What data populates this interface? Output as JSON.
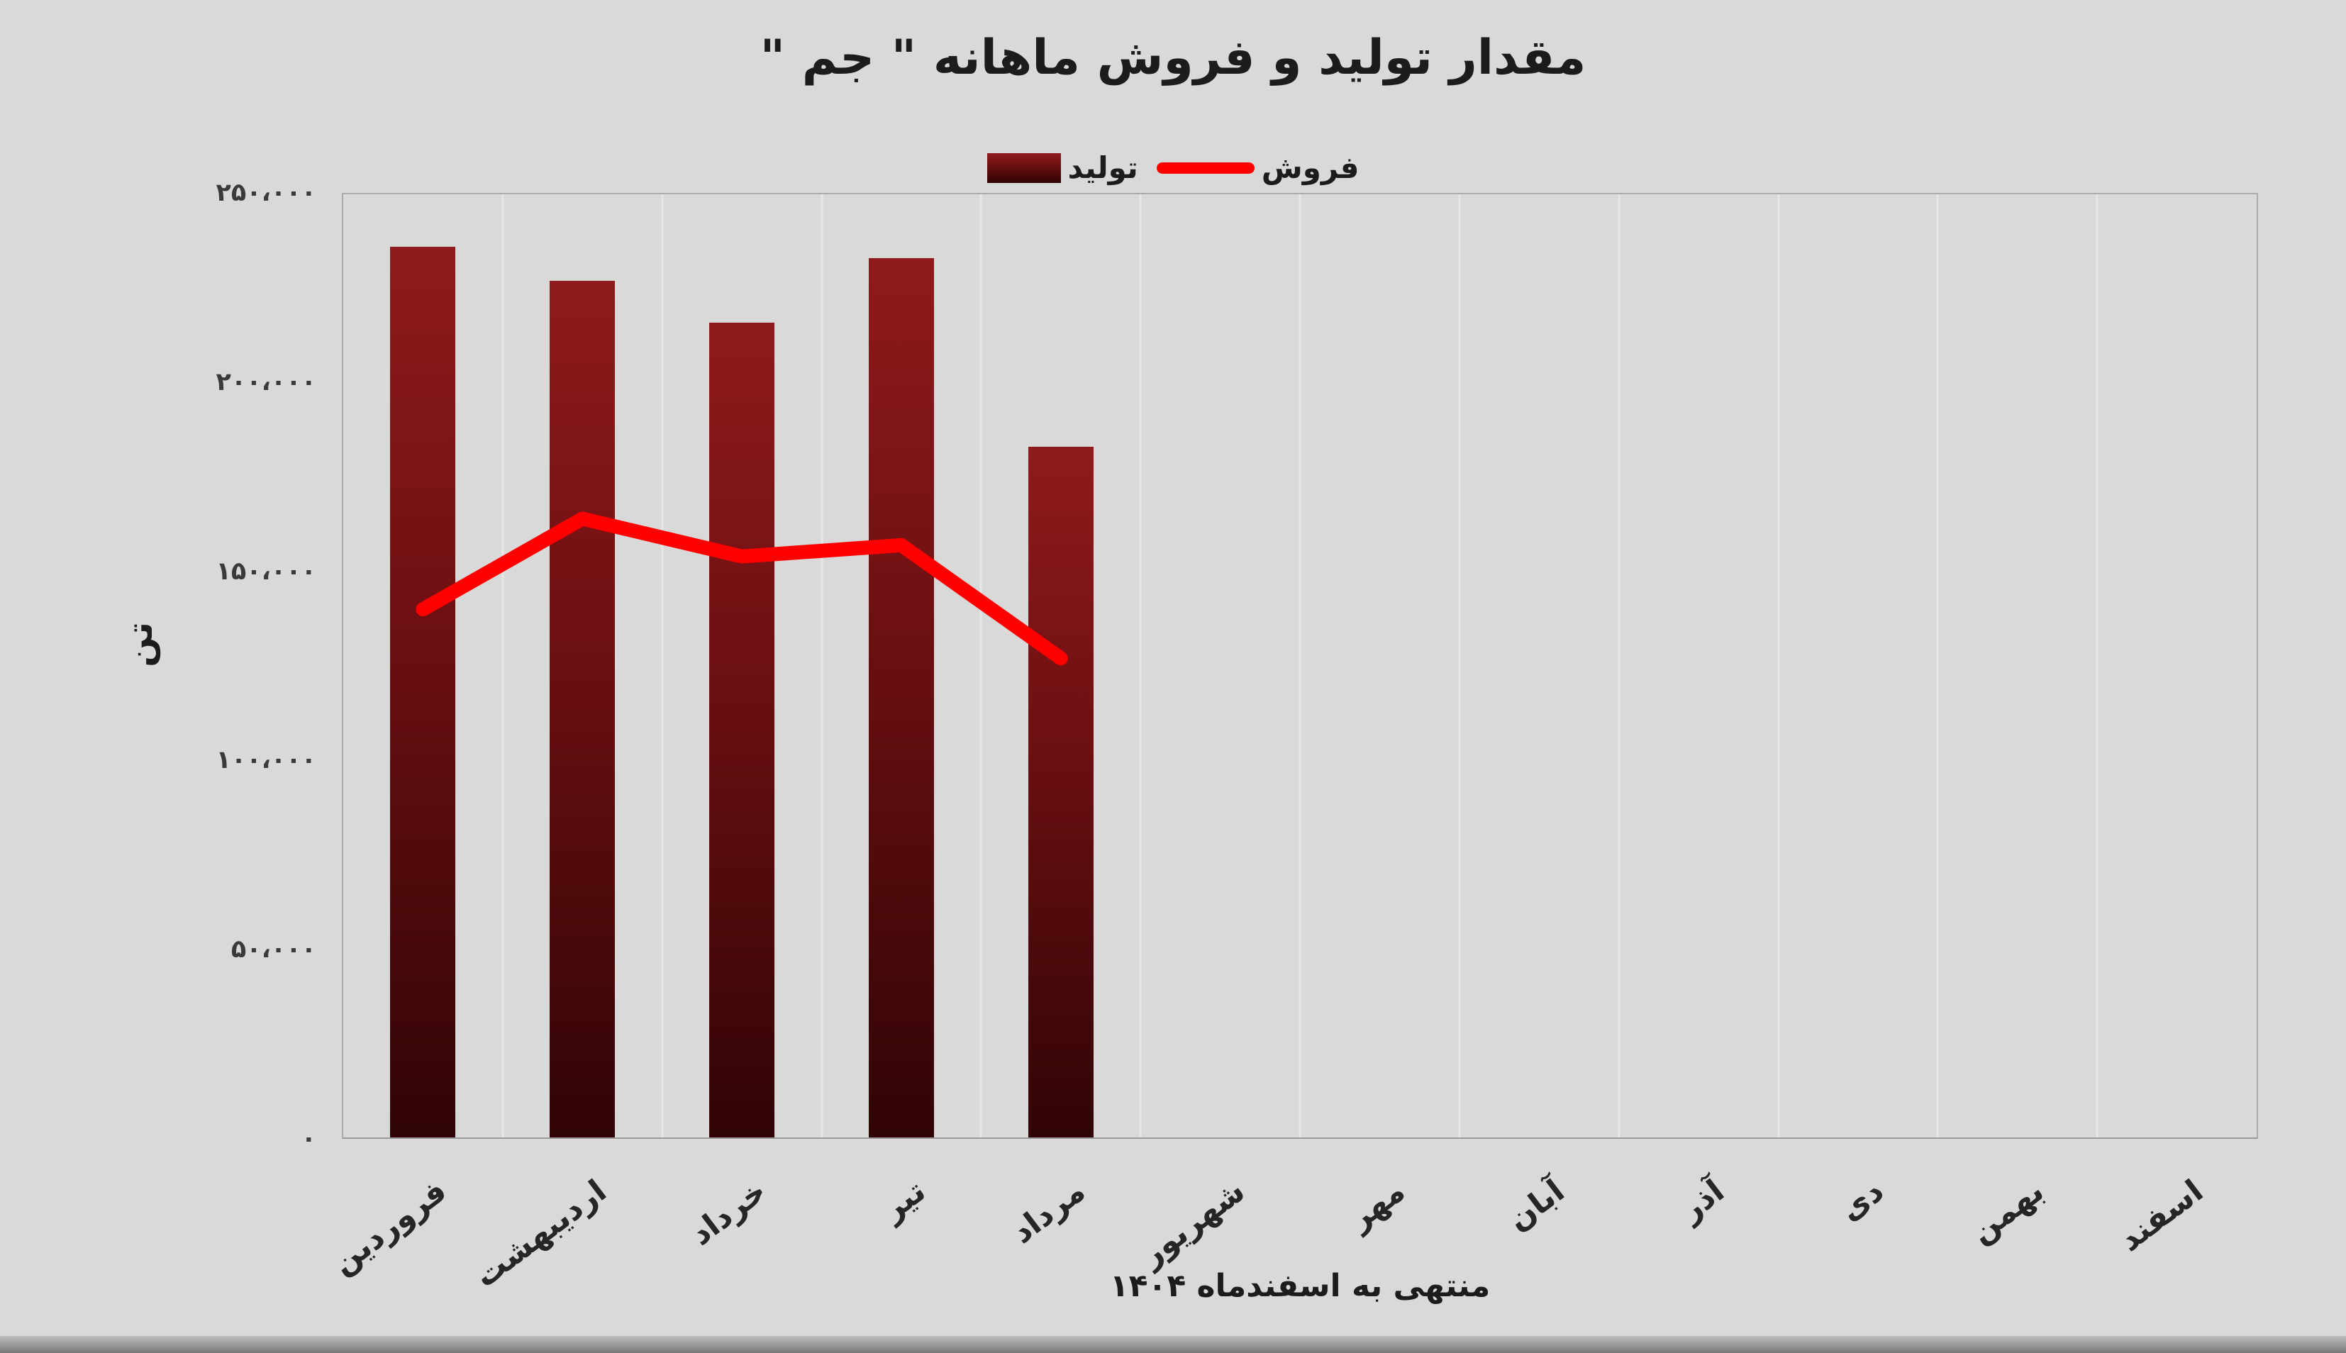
{
  "page": {
    "background": "#d9d9d9"
  },
  "title": "مقدار تولید و فروش ماهانه \" جم \"",
  "legend": {
    "production_label": "تولید",
    "sales_label": "فروش"
  },
  "axis": {
    "y_title": "تن",
    "x_caption": "منتهی به اسفندماه ۱۴۰۴"
  },
  "colors": {
    "bar": "#7b1113",
    "line": "#ff0000",
    "background": "#d9d9d9",
    "gridline": "#e7e7e7"
  },
  "chart_data": {
    "type": "bar+line",
    "title": "مقدار تولید و فروش ماهانه \" جم \"",
    "xlabel": "منتهی به اسفندماه ۱۴۰۴",
    "ylabel": "تن",
    "categories": [
      "فروردین",
      "اردیبهشت",
      "خرداد",
      "تیر",
      "مرداد",
      "شهریور",
      "مهر",
      "آبان",
      "آذر",
      "دی",
      "بهمن",
      "اسفند"
    ],
    "series": [
      {
        "name": "تولید",
        "type": "bar",
        "color": "#7b1113",
        "values": [
          236000,
          227000,
          216000,
          233000,
          183000,
          null,
          null,
          null,
          null,
          null,
          null,
          null
        ]
      },
      {
        "name": "فروش",
        "type": "line",
        "color": "#ff0000",
        "values": [
          140000,
          164000,
          154000,
          157000,
          127000,
          null,
          null,
          null,
          null,
          null,
          null,
          null
        ]
      }
    ],
    "ylim": [
      0,
      250000
    ],
    "yticks": [
      {
        "value": 0,
        "label": "۰"
      },
      {
        "value": 50000,
        "label": "۵۰،۰۰۰"
      },
      {
        "value": 100000,
        "label": "۱۰۰،۰۰۰"
      },
      {
        "value": 150000,
        "label": "۱۵۰،۰۰۰"
      },
      {
        "value": 200000,
        "label": "۲۰۰،۰۰۰"
      },
      {
        "value": 250000,
        "label": "۲۵۰،۰۰۰"
      }
    ],
    "grid": "vertical-only",
    "legend_position": "top-center"
  }
}
